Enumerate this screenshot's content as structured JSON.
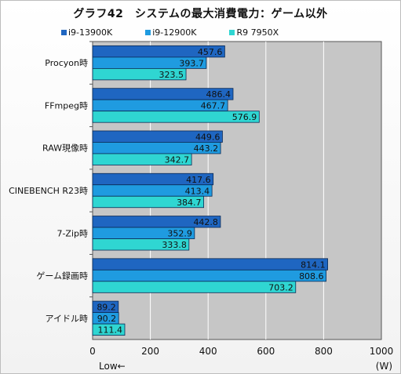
{
  "chart_data": {
    "type": "bar",
    "orientation": "horizontal",
    "title": "グラフ42　システムの最大消費電力：ゲーム以外",
    "categories": [
      "Procyon時",
      "FFmpeg時",
      "RAW現像時",
      "CINEBENCH R23時",
      "7-Zip時",
      "ゲーム録画時",
      "アイドル時"
    ],
    "series": [
      {
        "name": "i9-13900K",
        "color": "#1f66c1",
        "values": [
          457.6,
          486.4,
          449.6,
          417.6,
          442.8,
          814.1,
          89.2
        ]
      },
      {
        "name": "i9-12900K",
        "color": "#1f9be0",
        "values": [
          393.7,
          467.7,
          443.2,
          413.4,
          352.9,
          808.6,
          90.2
        ]
      },
      {
        "name": "R9 7950X",
        "color": "#2fd6d2",
        "values": [
          323.5,
          576.9,
          342.7,
          384.7,
          333.8,
          703.2,
          111.4
        ]
      }
    ],
    "xlim": [
      0,
      1000
    ],
    "xticks": [
      "0",
      "200",
      "400",
      "600",
      "800",
      "1000"
    ],
    "xlabel_left": "Low←",
    "unit": "(W)",
    "grid": true,
    "legend_position": "top"
  }
}
